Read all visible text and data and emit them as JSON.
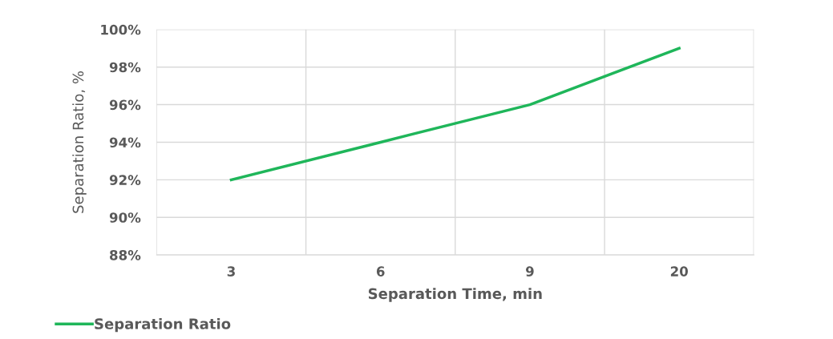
{
  "chart_data": {
    "type": "line",
    "xlabel": "Separation Time, min",
    "ylabel": "Separation Ratio, %",
    "categories": [
      "3",
      "6",
      "9",
      "20"
    ],
    "series": [
      {
        "name": "Separation Ratio",
        "color": "#1fb65a",
        "values": [
          92,
          94,
          96,
          99
        ]
      }
    ],
    "ylim": [
      88,
      100
    ],
    "yticks": [
      {
        "value": 88,
        "label": "88%"
      },
      {
        "value": 90,
        "label": "90%"
      },
      {
        "value": 92,
        "label": "92%"
      },
      {
        "value": 94,
        "label": "94%"
      },
      {
        "value": 96,
        "label": "96%"
      },
      {
        "value": 98,
        "label": "98%"
      },
      {
        "value": 100,
        "label": "100%"
      }
    ],
    "grid": true,
    "legend": "bottom left",
    "marker": "none",
    "line_style": "solid"
  }
}
